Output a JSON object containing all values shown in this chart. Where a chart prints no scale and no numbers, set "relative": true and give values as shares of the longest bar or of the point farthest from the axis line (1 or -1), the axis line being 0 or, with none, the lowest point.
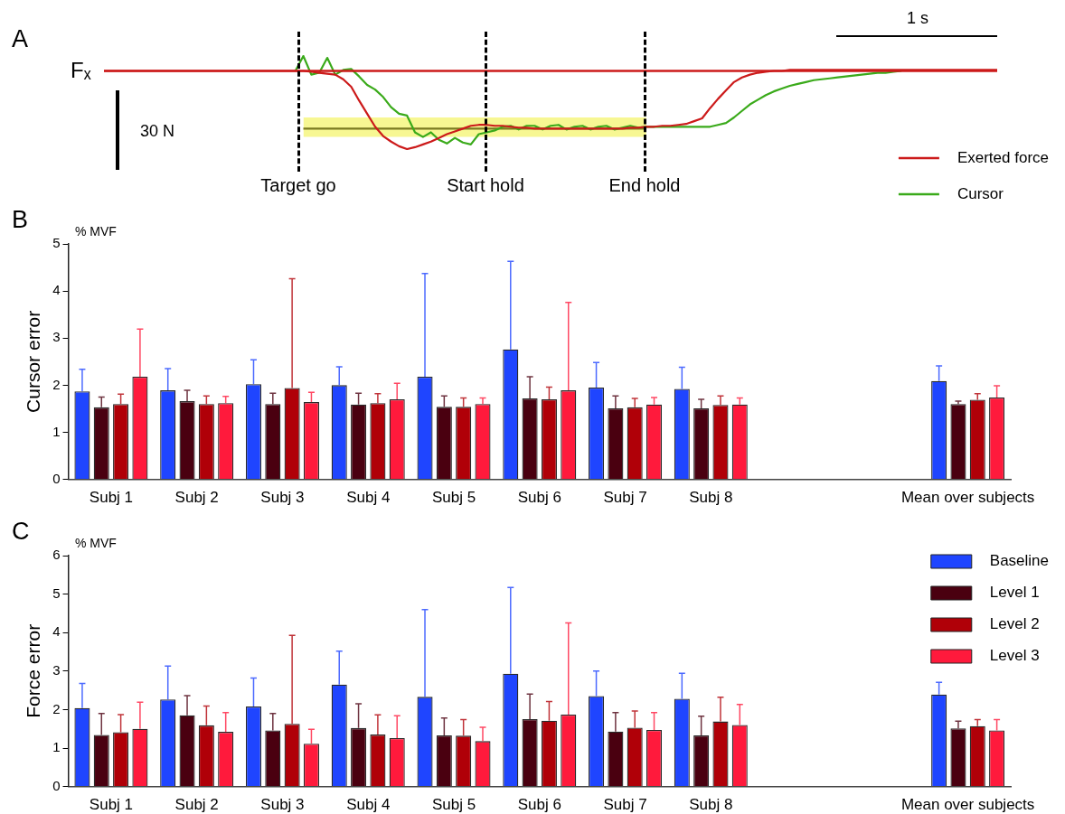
{
  "chart_data": [
    {
      "type": "line",
      "title": "A",
      "annotations": [
        "Fₓ",
        "30 N",
        "1 s",
        "Target go",
        "Start hold",
        "End hold"
      ],
      "relative": true,
      "grid": false,
      "legend": "bottom right",
      "marker": "none",
      "line_style": "solid",
      "categories": [
        null,
        null,
        null,
        null,
        null,
        null,
        null,
        null,
        null,
        null,
        null,
        null,
        null,
        null,
        null,
        null,
        null,
        null,
        null,
        null,
        null,
        null,
        null,
        null,
        null,
        null,
        null,
        null,
        null,
        null,
        null,
        null,
        null,
        null,
        null,
        null,
        null,
        null,
        null,
        null,
        null,
        null,
        null,
        null,
        null,
        null,
        null,
        null,
        null,
        null,
        null,
        null,
        null,
        null,
        null,
        null,
        null,
        null,
        null,
        null,
        null,
        null,
        null,
        null,
        null,
        null,
        null,
        null,
        null,
        null,
        null,
        null,
        null,
        null,
        null,
        null,
        null,
        null,
        null,
        null,
        null,
        null,
        null,
        null,
        null,
        null,
        null,
        null,
        null,
        null,
        null,
        null,
        null,
        null,
        null,
        null,
        null,
        null,
        null,
        null,
        null,
        null,
        null,
        null,
        null,
        null,
        null,
        null,
        null,
        null,
        null,
        null,
        null
      ],
      "ref_lines": [
        {
          "axis": "y",
          "value": 0.84,
          "color": "#cc1a1a",
          "line_style": "solid"
        }
      ],
      "series": [
        {
          "name": "Exerted force",
          "color": "#cc1a1a",
          "values": [
            0.84,
            0.84,
            0.84,
            0.84,
            0.84,
            0.84,
            0.84,
            0.84,
            0.84,
            0.84,
            0.84,
            0.84,
            0.84,
            0.84,
            0.84,
            0.84,
            0.84,
            0.84,
            0.84,
            0.84,
            0.84,
            0.84,
            0.84,
            0.84,
            0.84,
            0.84,
            0.83,
            0.82,
            0.81,
            0.8,
            0.75,
            0.67,
            0.52,
            0.38,
            0.24,
            0.14,
            0.08,
            0.03,
            0,
            0.02,
            0.05,
            0.08,
            0.12,
            0.16,
            0.19,
            0.22,
            0.25,
            0.26,
            0.26,
            0.25,
            0.25,
            0.24,
            0.23,
            0.23,
            0.22,
            0.22,
            0.22,
            0.22,
            0.22,
            0.22,
            0.22,
            0.22,
            0.22,
            0.22,
            0.22,
            0.22,
            0.23,
            0.23,
            0.24,
            0.24,
            0.25,
            0.25,
            0.26,
            0.27,
            0.3,
            0.33,
            0.44,
            0.54,
            0.63,
            0.72,
            0.77,
            0.8,
            0.82,
            0.83,
            0.84,
            0.84,
            0.85,
            0.85,
            0.85,
            0.85,
            0.85,
            0.85,
            0.85,
            0.85,
            0.85,
            0.85,
            0.85,
            0.85,
            0.85,
            0.85,
            0.85,
            0.85,
            0.85,
            0.85,
            0.85,
            0.85,
            0.85,
            0.85,
            0.85,
            0.85,
            0.85,
            0.85,
            0.85
          ]
        },
        {
          "name": "Cursor",
          "color": "#3aaa1a",
          "values": [
            null,
            null,
            null,
            null,
            null,
            null,
            null,
            null,
            null,
            null,
            null,
            null,
            null,
            null,
            null,
            null,
            null,
            null,
            null,
            null,
            null,
            null,
            null,
            null,
            0.84,
            1.0,
            0.8,
            0.82,
            0.98,
            0.8,
            0.85,
            0.86,
            0.78,
            0.69,
            0.64,
            0.56,
            0.45,
            0.38,
            0.36,
            0.18,
            0.13,
            0.18,
            0.1,
            0.06,
            0.12,
            0.07,
            0.05,
            0.16,
            0.18,
            0.2,
            0.24,
            0.25,
            0.21,
            0.25,
            0.25,
            0.21,
            0.25,
            0.26,
            0.21,
            0.24,
            0.25,
            0.21,
            0.24,
            0.25,
            0.21,
            0.23,
            0.25,
            0.23,
            0.24,
            0.24,
            0.24,
            0.24,
            0.24,
            0.24,
            0.24,
            0.24,
            0.24,
            0.26,
            0.28,
            0.34,
            0.41,
            0.48,
            0.53,
            0.58,
            0.62,
            0.65,
            0.68,
            0.7,
            0.72,
            0.74,
            0.75,
            0.76,
            0.77,
            0.78,
            0.79,
            0.8,
            0.81,
            0.82,
            0.82,
            0.83,
            0.84,
            null,
            null,
            null,
            null,
            null,
            null,
            null,
            null,
            null,
            null,
            null,
            null
          ]
        },
        {
          "color": "#7a7a20",
          "values": [
            null,
            null,
            null,
            null,
            null,
            null,
            null,
            null,
            null,
            null,
            null,
            null,
            null,
            null,
            null,
            null,
            null,
            null,
            null,
            null,
            null,
            null,
            null,
            null,
            null,
            0.22,
            0.22,
            0.22,
            0.22,
            0.22,
            0.22,
            0.22,
            0.22,
            0.22,
            0.22,
            0.22,
            0.22,
            0.22,
            0.22,
            0.22,
            0.22,
            0.22,
            0.22,
            0.22,
            0.22,
            0.22,
            0.22,
            0.22,
            0.22,
            0.22,
            0.22,
            0.22,
            0.22,
            0.22,
            0.22,
            0.22,
            0.22,
            0.22,
            0.22,
            0.22,
            0.22,
            0.22,
            0.22,
            0.22,
            0.22,
            0.22,
            0.22,
            0.22,
            0.22,
            null,
            null,
            null,
            null,
            null,
            null,
            null,
            null,
            null,
            null,
            null,
            null,
            null,
            null,
            null,
            null,
            null,
            null,
            null,
            null,
            null,
            null,
            null,
            null,
            null,
            null,
            null,
            null,
            null,
            null,
            null,
            null,
            null,
            null,
            null,
            null,
            null,
            null,
            null,
            null,
            null,
            null,
            null,
            null
          ],
          "lower": [
            null,
            null,
            null,
            null,
            null,
            null,
            null,
            null,
            null,
            null,
            null,
            null,
            null,
            null,
            null,
            null,
            null,
            null,
            null,
            null,
            null,
            null,
            null,
            null,
            null,
            0.13,
            0.13,
            0.13,
            0.13,
            0.13,
            0.13,
            0.13,
            0.13,
            0.13,
            0.13,
            0.13,
            0.13,
            0.13,
            0.13,
            0.13,
            0.13,
            0.13,
            0.13,
            0.13,
            0.13,
            0.13,
            0.13,
            0.13,
            0.13,
            0.13,
            0.13,
            0.13,
            0.13,
            0.13,
            0.13,
            0.13,
            0.13,
            0.13,
            0.13,
            0.13,
            0.13,
            0.13,
            0.13,
            0.13,
            0.13,
            0.13,
            0.13,
            0.13,
            0.13,
            null,
            null,
            null,
            null,
            null,
            null,
            null,
            null,
            null,
            null,
            null,
            null,
            null,
            null,
            null,
            null,
            null,
            null,
            null,
            null,
            null,
            null,
            null,
            null,
            null,
            null,
            null,
            null,
            null,
            null,
            null,
            null,
            null,
            null,
            null,
            null,
            null,
            null,
            null,
            null,
            null,
            null,
            null,
            null
          ],
          "upper": [
            null,
            null,
            null,
            null,
            null,
            null,
            null,
            null,
            null,
            null,
            null,
            null,
            null,
            null,
            null,
            null,
            null,
            null,
            null,
            null,
            null,
            null,
            null,
            null,
            null,
            0.34,
            0.34,
            0.34,
            0.34,
            0.34,
            0.34,
            0.34,
            0.34,
            0.34,
            0.34,
            0.34,
            0.34,
            0.34,
            0.34,
            0.34,
            0.34,
            0.34,
            0.34,
            0.34,
            0.34,
            0.34,
            0.34,
            0.34,
            0.34,
            0.34,
            0.34,
            0.34,
            0.34,
            0.34,
            0.34,
            0.34,
            0.34,
            0.34,
            0.34,
            0.34,
            0.34,
            0.34,
            0.34,
            0.34,
            0.34,
            0.34,
            0.34,
            0.34,
            0.34,
            null,
            null,
            null,
            null,
            null,
            null,
            null,
            null,
            null,
            null,
            null,
            null,
            null,
            null,
            null,
            null,
            null,
            null,
            null,
            null,
            null,
            null,
            null,
            null,
            null,
            null,
            null,
            null,
            null,
            null,
            null,
            null,
            null,
            null,
            null,
            null,
            null,
            null,
            null,
            null,
            null,
            null,
            null,
            null
          ]
        }
      ]
    },
    {
      "type": "bar",
      "title": "B",
      "subtitle": "% MVF",
      "ylabel": "Cursor error",
      "ylim": [
        0,
        5
      ],
      "yticks": [
        0,
        1,
        2,
        3,
        4,
        5
      ],
      "grid": false,
      "categories": [
        "Subj 1",
        "Subj 2",
        "Subj 3",
        "Subj 4",
        "Subj 5",
        "Subj 6",
        "Subj 7",
        "Subj 8",
        null,
        null,
        "Mean over subjects"
      ],
      "series": [
        {
          "color": "#1f45ff",
          "values": [
            1.87,
            1.89,
            2.02,
            2.0,
            2.18,
            2.76,
            1.95,
            1.92,
            null,
            null,
            2.09
          ],
          "errors": [
            [
              1.87,
              2.34
            ],
            [
              1.89,
              2.35
            ],
            [
              2.02,
              2.54
            ],
            [
              2.0,
              2.39
            ],
            [
              2.18,
              4.37
            ],
            [
              2.76,
              4.63
            ],
            [
              1.95,
              2.48
            ],
            [
              1.92,
              2.38
            ],
            null,
            null,
            [
              2.09,
              2.41
            ]
          ]
        },
        {
          "color": "#4a0010",
          "values": [
            1.53,
            1.66,
            1.6,
            1.59,
            1.54,
            1.72,
            1.51,
            1.51,
            null,
            null,
            1.6
          ],
          "errors": [
            [
              1.53,
              1.75
            ],
            [
              1.66,
              1.89
            ],
            [
              1.6,
              1.83
            ],
            [
              1.59,
              1.83
            ],
            [
              1.54,
              1.77
            ],
            [
              1.72,
              2.18
            ],
            [
              1.51,
              1.77
            ],
            [
              1.51,
              1.7
            ],
            null,
            null,
            [
              1.6,
              1.66
            ]
          ]
        },
        {
          "color": "#b00008",
          "values": [
            1.6,
            1.6,
            1.94,
            1.62,
            1.54,
            1.7,
            1.53,
            1.58,
            null,
            null,
            1.69
          ],
          "errors": [
            [
              1.6,
              1.81
            ],
            [
              1.6,
              1.77
            ],
            [
              1.94,
              4.26
            ],
            [
              1.62,
              1.82
            ],
            [
              1.54,
              1.73
            ],
            [
              1.7,
              1.96
            ],
            [
              1.53,
              1.72
            ],
            [
              1.58,
              1.77
            ],
            null,
            null,
            [
              1.69,
              1.82
            ]
          ]
        },
        {
          "color": "#ff1a3c",
          "values": [
            2.18,
            1.62,
            1.64,
            1.7,
            1.6,
            1.89,
            1.59,
            1.59,
            null,
            null,
            1.74
          ],
          "errors": [
            [
              2.18,
              3.19
            ],
            [
              1.62,
              1.76
            ],
            [
              1.64,
              1.85
            ],
            [
              1.7,
              2.04
            ],
            [
              1.6,
              1.73
            ],
            [
              1.89,
              3.76
            ],
            [
              1.59,
              1.74
            ],
            [
              1.59,
              1.73
            ],
            null,
            null,
            [
              1.74,
              1.99
            ]
          ]
        }
      ]
    },
    {
      "type": "bar",
      "title": "C",
      "subtitle": "% MVF",
      "ylabel": "Force error",
      "ylim": [
        0,
        6
      ],
      "yticks": [
        0,
        1,
        2,
        3,
        4,
        5,
        6
      ],
      "grid": false,
      "legend": "top right",
      "categories": [
        "Subj 1",
        "Subj 2",
        "Subj 3",
        "Subj 4",
        "Subj 5",
        "Subj 6",
        "Subj 7",
        "Subj 8",
        null,
        null,
        "Mean over subjects"
      ],
      "series": [
        {
          "name": "Baseline",
          "color": "#1f45ff",
          "values": [
            2.04,
            2.26,
            2.08,
            2.65,
            2.33,
            2.93,
            2.35,
            2.28,
            null,
            null,
            2.39
          ],
          "errors": [
            [
              2.04,
              2.68
            ],
            [
              2.26,
              3.13
            ],
            [
              2.08,
              2.82
            ],
            [
              2.65,
              3.52
            ],
            [
              2.33,
              4.6
            ],
            [
              2.93,
              5.17
            ],
            [
              2.35,
              3.0
            ],
            [
              2.28,
              2.94
            ],
            null,
            null,
            [
              2.39,
              2.71
            ]
          ]
        },
        {
          "name": "Level 1",
          "color": "#4a0010",
          "values": [
            1.34,
            1.85,
            1.46,
            1.52,
            1.33,
            1.75,
            1.43,
            1.33,
            null,
            null,
            1.51
          ],
          "errors": [
            [
              1.34,
              1.9
            ],
            [
              1.85,
              2.36
            ],
            [
              1.46,
              1.9
            ],
            [
              1.52,
              2.15
            ],
            [
              1.33,
              1.78
            ],
            [
              1.75,
              2.4
            ],
            [
              1.43,
              1.92
            ],
            [
              1.33,
              1.83
            ],
            null,
            null,
            [
              1.51,
              1.7
            ]
          ]
        },
        {
          "name": "Level 2",
          "color": "#b00008",
          "values": [
            1.41,
            1.59,
            1.63,
            1.35,
            1.32,
            1.71,
            1.53,
            1.69,
            null,
            null,
            1.57
          ],
          "errors": [
            [
              1.41,
              1.87
            ],
            [
              1.59,
              2.09
            ],
            [
              1.63,
              3.93
            ],
            [
              1.35,
              1.86
            ],
            [
              1.32,
              1.74
            ],
            [
              1.71,
              2.21
            ],
            [
              1.53,
              1.96
            ],
            [
              1.69,
              2.32
            ],
            null,
            null,
            [
              1.57,
              1.74
            ]
          ]
        },
        {
          "name": "Level 3",
          "color": "#ff1a3c",
          "values": [
            1.5,
            1.42,
            1.11,
            1.26,
            1.18,
            1.87,
            1.47,
            1.6,
            null,
            null,
            1.46
          ],
          "errors": [
            [
              1.5,
              2.19
            ],
            [
              1.42,
              1.92
            ],
            [
              1.11,
              1.49
            ],
            [
              1.26,
              1.84
            ],
            [
              1.18,
              1.54
            ],
            [
              1.87,
              4.25
            ],
            [
              1.47,
              1.92
            ],
            [
              1.6,
              2.13
            ],
            null,
            null,
            [
              1.46,
              1.74
            ]
          ]
        }
      ]
    }
  ]
}
